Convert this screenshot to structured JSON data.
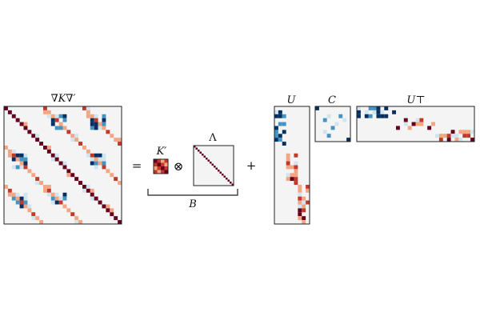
{
  "labels": {
    "gradient_kernel": "∇K∇′",
    "k_prime": "K′",
    "lambda": "Λ",
    "b": "B",
    "u": "U",
    "c": "C",
    "u_transpose": "U⊤"
  },
  "operators": {
    "equals": "=",
    "kron": "⊗",
    "plus": "+"
  },
  "colors": {
    "dark_red": "#67001f",
    "red": "#c0392b",
    "salmon": "#f4a582",
    "light_blue": "#d1e5f0",
    "blue": "#4393c3",
    "dark_blue": "#053061",
    "background": "#f4f4f4",
    "frame": "#222222"
  }
}
